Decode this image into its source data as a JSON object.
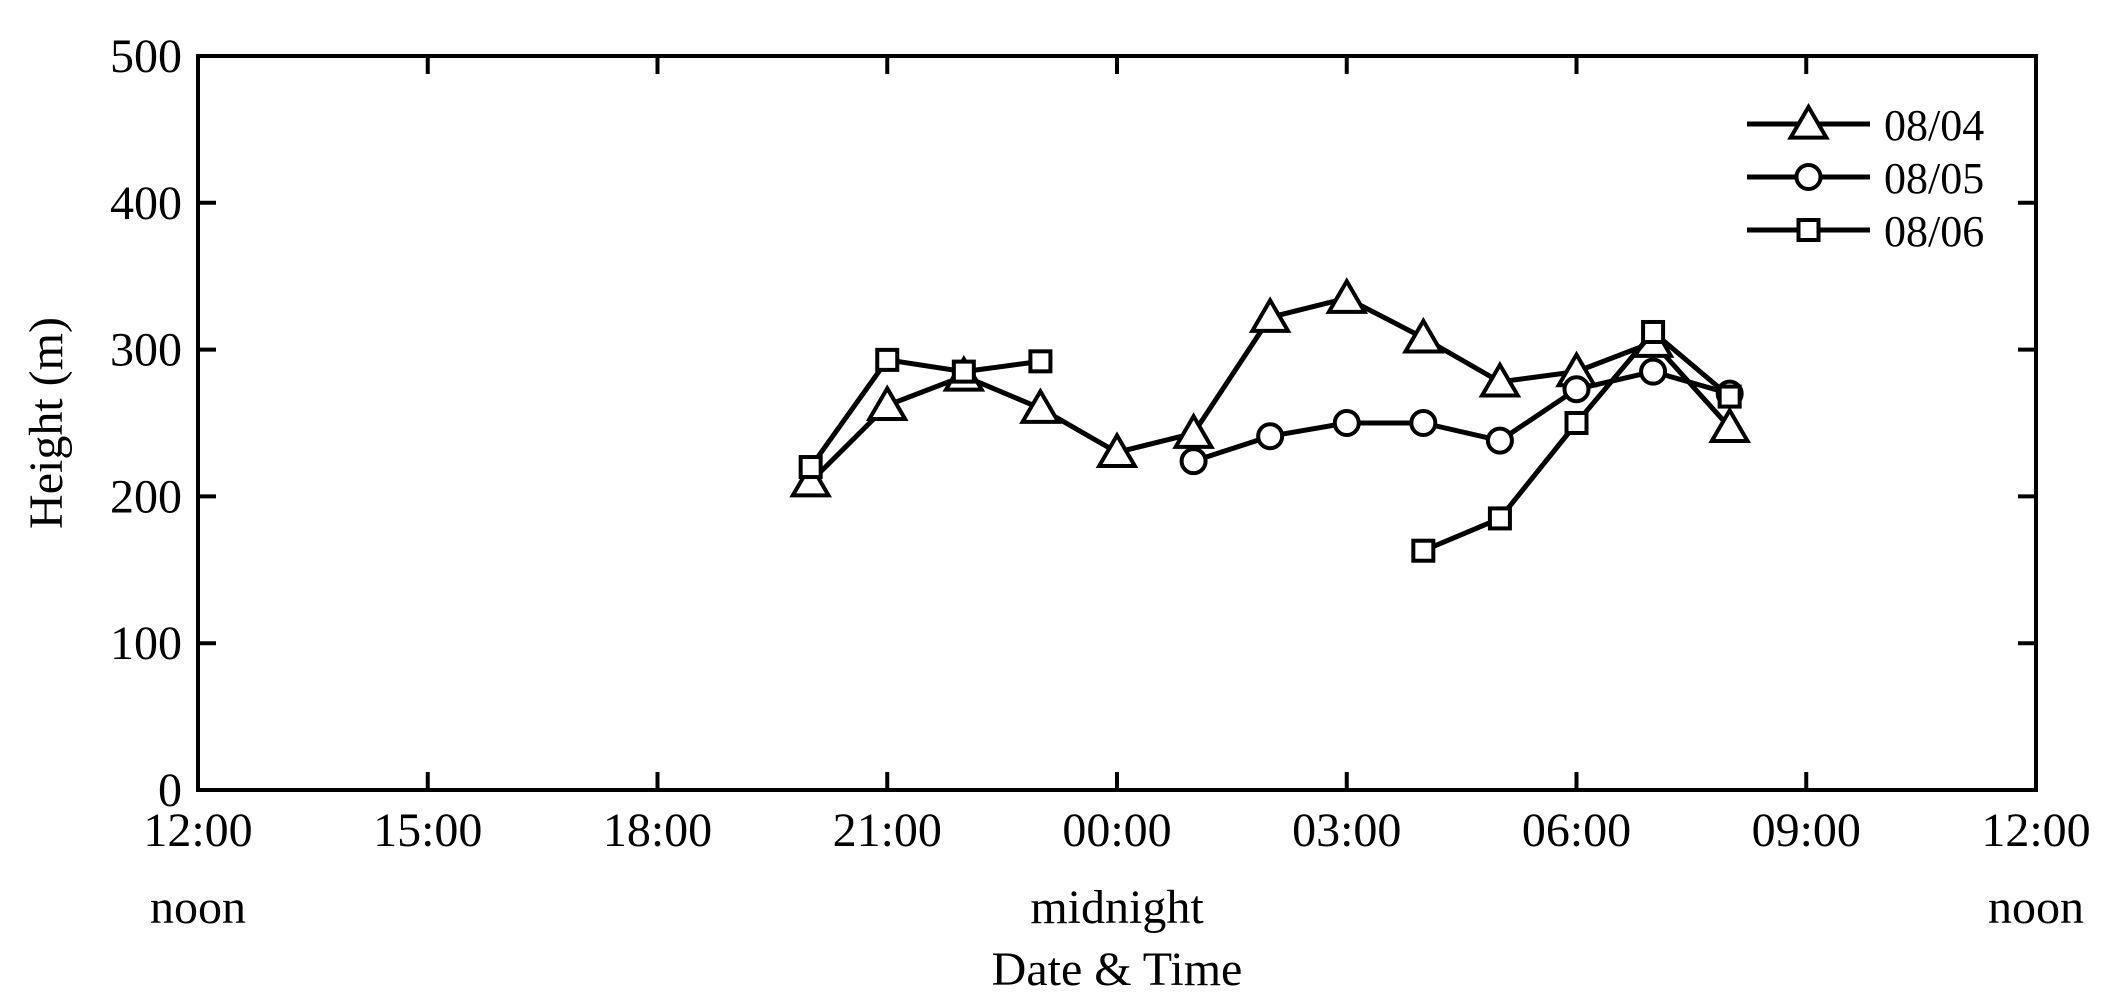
{
  "chart_data": {
    "type": "line",
    "xlabel": "Date & Time",
    "ylabel": "Height (m)",
    "ylim": [
      0,
      500
    ],
    "yticks": [
      0,
      100,
      200,
      300,
      400,
      500
    ],
    "xlim": [
      12,
      36
    ],
    "xticks": [
      {
        "value": 12,
        "label": "12:00"
      },
      {
        "value": 15,
        "label": "15:00"
      },
      {
        "value": 18,
        "label": "18:00"
      },
      {
        "value": 21,
        "label": "21:00"
      },
      {
        "value": 24,
        "label": "00:00"
      },
      {
        "value": 27,
        "label": "03:00"
      },
      {
        "value": 30,
        "label": "06:00"
      },
      {
        "value": 33,
        "label": "09:00"
      },
      {
        "value": 36,
        "label": "12:00"
      }
    ],
    "xsublabels": [
      {
        "value": 12,
        "label": "noon"
      },
      {
        "value": 24,
        "label": "midnight"
      },
      {
        "value": 36,
        "label": "noon"
      }
    ],
    "grid": false,
    "legend_position": "top-right",
    "series": [
      {
        "name": "08/04",
        "marker": "triangle",
        "x": [
          20,
          21,
          22,
          23,
          24,
          25,
          26,
          27,
          28,
          29,
          30,
          31,
          32
        ],
        "y": [
          210,
          262,
          282,
          260,
          230,
          243,
          322,
          335,
          308,
          278,
          285,
          305,
          247
        ]
      },
      {
        "name": "08/05",
        "marker": "circle",
        "x": [
          25,
          26,
          27,
          28,
          29,
          30,
          31,
          32
        ],
        "y": [
          224,
          241,
          250,
          250,
          238,
          273,
          285,
          270
        ]
      },
      {
        "name": "08/06",
        "segments": [
          {
            "x": [
              20,
              21,
              22,
              23
            ],
            "y": [
              220,
              293,
              285,
              292
            ]
          },
          {
            "x": [
              28,
              29,
              30,
              31,
              32
            ],
            "y": [
              163,
              185,
              250,
              312,
              268
            ]
          }
        ],
        "marker": "square"
      }
    ]
  }
}
